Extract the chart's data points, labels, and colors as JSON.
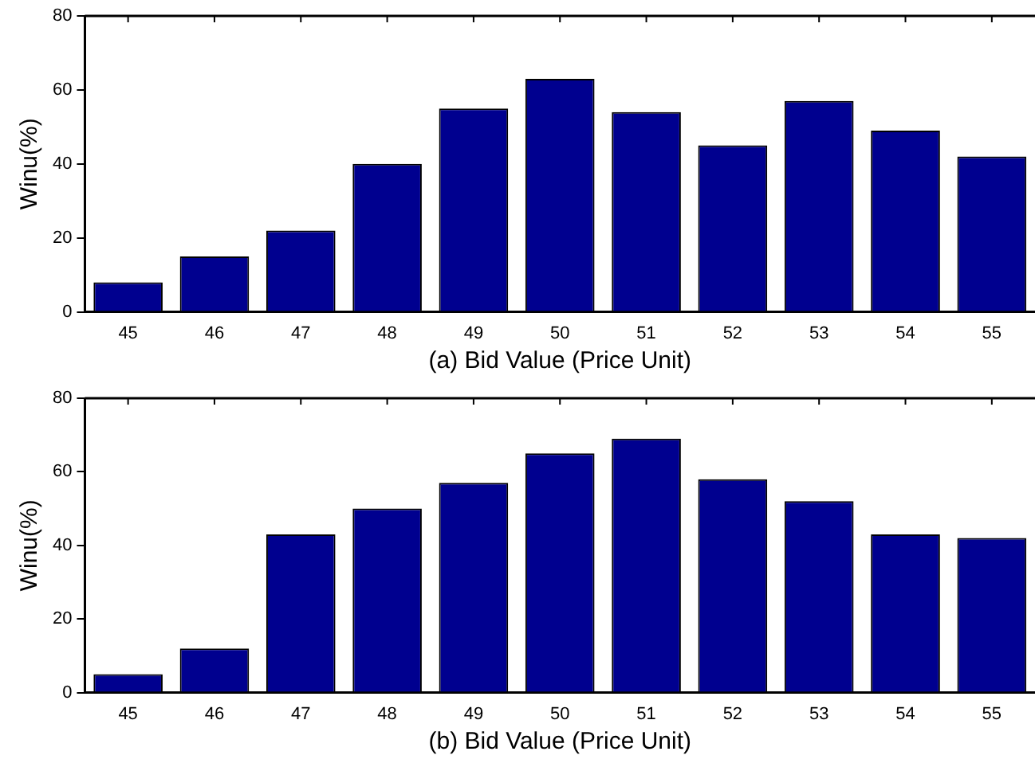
{
  "chart_data": [
    {
      "type": "bar",
      "categories": [
        "45",
        "46",
        "47",
        "48",
        "49",
        "50",
        "51",
        "52",
        "53",
        "54",
        "55"
      ],
      "xlabel": "(a) Bid Value (Price Unit)",
      "ylabel": "Winu(%)",
      "color": "#00008f",
      "values": [
        8,
        15,
        22,
        40,
        55,
        63,
        54,
        45,
        57,
        49,
        42
      ],
      "ylim": [
        0,
        80
      ],
      "yticks": [
        0,
        20,
        40,
        60,
        80
      ],
      "grid": false,
      "legend": false
    },
    {
      "type": "bar",
      "categories": [
        "45",
        "46",
        "47",
        "48",
        "49",
        "50",
        "51",
        "52",
        "53",
        "54",
        "55"
      ],
      "xlabel": "(b) Bid Value (Price Unit)",
      "ylabel": "Winu(%)",
      "color": "#00008f",
      "values": [
        5,
        12,
        43,
        50,
        57,
        65,
        69,
        58,
        52,
        43,
        42
      ],
      "ylim": [
        0,
        80
      ],
      "yticks": [
        0,
        20,
        40,
        60,
        80
      ],
      "grid": false,
      "legend": false
    }
  ]
}
